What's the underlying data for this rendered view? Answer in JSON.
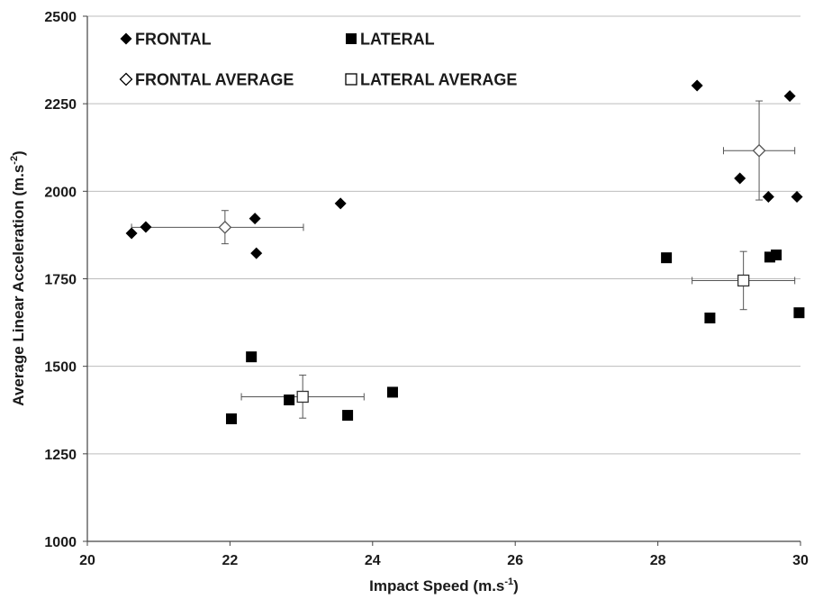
{
  "chart_data": {
    "type": "scatter",
    "xlabel": "Impact Speed (m.s",
    "xlabel_sup": "-1",
    "xlabel_end": ")",
    "ylabel": "Average Linear Acceleration (m.s",
    "ylabel_sup": "-2",
    "ylabel_end": ")",
    "xlim": [
      20,
      30
    ],
    "ylim": [
      1000,
      2500
    ],
    "x_ticks": [
      20,
      22,
      24,
      26,
      28,
      30
    ],
    "y_ticks": [
      1000,
      1250,
      1500,
      1750,
      2000,
      2250,
      2500
    ],
    "grid": "horizontal",
    "legend_position": "top-left",
    "series": [
      {
        "name": "FRONTAL",
        "marker": "diamond-filled",
        "color": "#000000",
        "points": [
          {
            "x": 20.62,
            "y": 1880
          },
          {
            "x": 20.82,
            "y": 1898
          },
          {
            "x": 22.35,
            "y": 1922
          },
          {
            "x": 22.37,
            "y": 1823
          },
          {
            "x": 23.55,
            "y": 1965
          },
          {
            "x": 28.55,
            "y": 2302
          },
          {
            "x": 29.15,
            "y": 2037
          },
          {
            "x": 29.55,
            "y": 1984
          },
          {
            "x": 29.85,
            "y": 2272
          },
          {
            "x": 29.95,
            "y": 1984
          }
        ]
      },
      {
        "name": "LATERAL",
        "marker": "square-filled",
        "color": "#000000",
        "points": [
          {
            "x": 22.02,
            "y": 1350
          },
          {
            "x": 22.3,
            "y": 1527
          },
          {
            "x": 22.83,
            "y": 1404
          },
          {
            "x": 23.65,
            "y": 1360
          },
          {
            "x": 24.28,
            "y": 1426
          },
          {
            "x": 28.12,
            "y": 1810
          },
          {
            "x": 28.73,
            "y": 1638
          },
          {
            "x": 29.57,
            "y": 1812
          },
          {
            "x": 29.66,
            "y": 1818
          },
          {
            "x": 29.98,
            "y": 1653
          }
        ]
      },
      {
        "name": "FRONTAL AVERAGE",
        "marker": "diamond-open",
        "color": "#555555",
        "points": [
          {
            "x": 21.93,
            "y": 1897,
            "x_err": [
              20.62,
              23.03
            ],
            "y_err": [
              1850,
              1945
            ]
          },
          {
            "x": 29.42,
            "y": 2116,
            "x_err": [
              28.92,
              29.92
            ],
            "y_err": [
              1975,
              2258
            ]
          }
        ]
      },
      {
        "name": "LATERAL AVERAGE",
        "marker": "square-open",
        "color": "#333333",
        "points": [
          {
            "x": 23.02,
            "y": 1413,
            "x_err": [
              22.16,
              23.88
            ],
            "y_err": [
              1352,
              1475
            ]
          },
          {
            "x": 29.2,
            "y": 1745,
            "x_err": [
              28.48,
              29.92
            ],
            "y_err": [
              1662,
              1828
            ]
          }
        ]
      }
    ]
  }
}
